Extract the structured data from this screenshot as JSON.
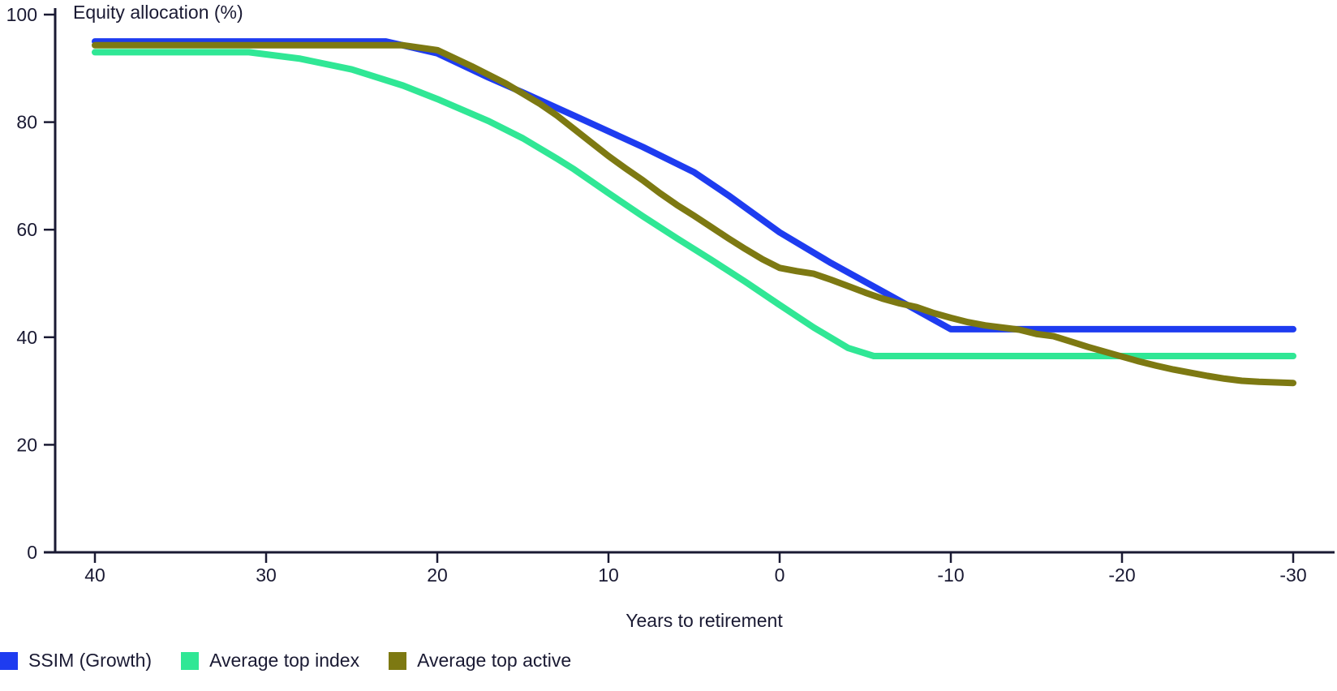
{
  "page": {
    "background": "#ffffff",
    "text_color": "#1a1a33"
  },
  "chart": {
    "title": "Equity allocation (%)",
    "xlabel": "Years to retirement"
  },
  "legend": {
    "position": "bottom-left",
    "items": [
      {
        "label": "SSIM (Growth)",
        "color": "#1e3cf0"
      },
      {
        "label": "Average top index",
        "color": "#30e795"
      },
      {
        "label": "Average top active",
        "color": "#7d7912"
      }
    ]
  },
  "chart_data": {
    "type": "line",
    "title": "Equity allocation (%)",
    "xlabel": "Years to retirement",
    "ylabel": "Equity allocation (%)",
    "x_ticks": [
      40,
      30,
      20,
      10,
      0,
      -10,
      -20,
      -30
    ],
    "y_ticks": [
      0,
      20,
      40,
      60,
      80,
      100
    ],
    "x_range": [
      40,
      -30
    ],
    "x_axis_reversed": true,
    "ylim": [
      0,
      100
    ],
    "grid": false,
    "axis_color": "#1a1a33",
    "line_width": 8,
    "legend_position": "bottom-left",
    "series": [
      {
        "name": "SSIM (Growth)",
        "color": "#1e3cf0",
        "points": [
          [
            40,
            95
          ],
          [
            23,
            95
          ],
          [
            20,
            92.8
          ],
          [
            17,
            88.3
          ],
          [
            15,
            85.5
          ],
          [
            12,
            81.2
          ],
          [
            10,
            78.3
          ],
          [
            8,
            75.4
          ],
          [
            5,
            70.7
          ],
          [
            3,
            66.4
          ],
          [
            0,
            59.5
          ],
          [
            -3,
            53.8
          ],
          [
            -5,
            50.3
          ],
          [
            -7,
            46.8
          ],
          [
            -10,
            41.5
          ],
          [
            -30,
            41.5
          ]
        ]
      },
      {
        "name": "Average top index",
        "color": "#30e795",
        "points": [
          [
            40,
            93
          ],
          [
            31,
            93
          ],
          [
            28,
            91.8
          ],
          [
            25,
            89.8
          ],
          [
            22,
            86.8
          ],
          [
            20,
            84.3
          ],
          [
            17,
            80.2
          ],
          [
            15,
            77
          ],
          [
            13,
            73.2
          ],
          [
            12,
            71.2
          ],
          [
            10,
            66.8
          ],
          [
            8,
            62.5
          ],
          [
            6,
            58.4
          ],
          [
            4,
            54.4
          ],
          [
            2,
            50.3
          ],
          [
            0,
            46
          ],
          [
            -2,
            41.8
          ],
          [
            -4,
            38
          ],
          [
            -5.5,
            36.5
          ],
          [
            -30,
            36.5
          ]
        ]
      },
      {
        "name": "Average top active",
        "color": "#7d7912",
        "points": [
          [
            40,
            94.3
          ],
          [
            22,
            94.3
          ],
          [
            20,
            93.4
          ],
          [
            18,
            90.4
          ],
          [
            16,
            87.2
          ],
          [
            15,
            85.3
          ],
          [
            14,
            83.4
          ],
          [
            13,
            81.2
          ],
          [
            12,
            78.7
          ],
          [
            11,
            76.2
          ],
          [
            10,
            73.7
          ],
          [
            9,
            71.4
          ],
          [
            8,
            69.2
          ],
          [
            7,
            66.8
          ],
          [
            6,
            64.6
          ],
          [
            5,
            62.6
          ],
          [
            4,
            60.5
          ],
          [
            3,
            58.4
          ],
          [
            2,
            56.4
          ],
          [
            1,
            54.5
          ],
          [
            0,
            52.9
          ],
          [
            -1,
            52.3
          ],
          [
            -2,
            51.8
          ],
          [
            -3,
            50.7
          ],
          [
            -4,
            49.5
          ],
          [
            -5,
            48.3
          ],
          [
            -6,
            47.2
          ],
          [
            -7,
            46.3
          ],
          [
            -8,
            45.6
          ],
          [
            -9,
            44.5
          ],
          [
            -10,
            43.6
          ],
          [
            -11,
            42.8
          ],
          [
            -12,
            42.2
          ],
          [
            -13,
            41.8
          ],
          [
            -14,
            41.4
          ],
          [
            -15,
            40.6
          ],
          [
            -16,
            40.2
          ],
          [
            -17,
            39.2
          ],
          [
            -18,
            38.2
          ],
          [
            -19,
            37.3
          ],
          [
            -20,
            36.4
          ],
          [
            -21,
            35.5
          ],
          [
            -22,
            34.7
          ],
          [
            -23,
            34
          ],
          [
            -24,
            33.4
          ],
          [
            -25,
            32.8
          ],
          [
            -26,
            32.3
          ],
          [
            -27,
            31.9
          ],
          [
            -28,
            31.7
          ],
          [
            -29,
            31.6
          ],
          [
            -30,
            31.5
          ]
        ]
      }
    ]
  }
}
